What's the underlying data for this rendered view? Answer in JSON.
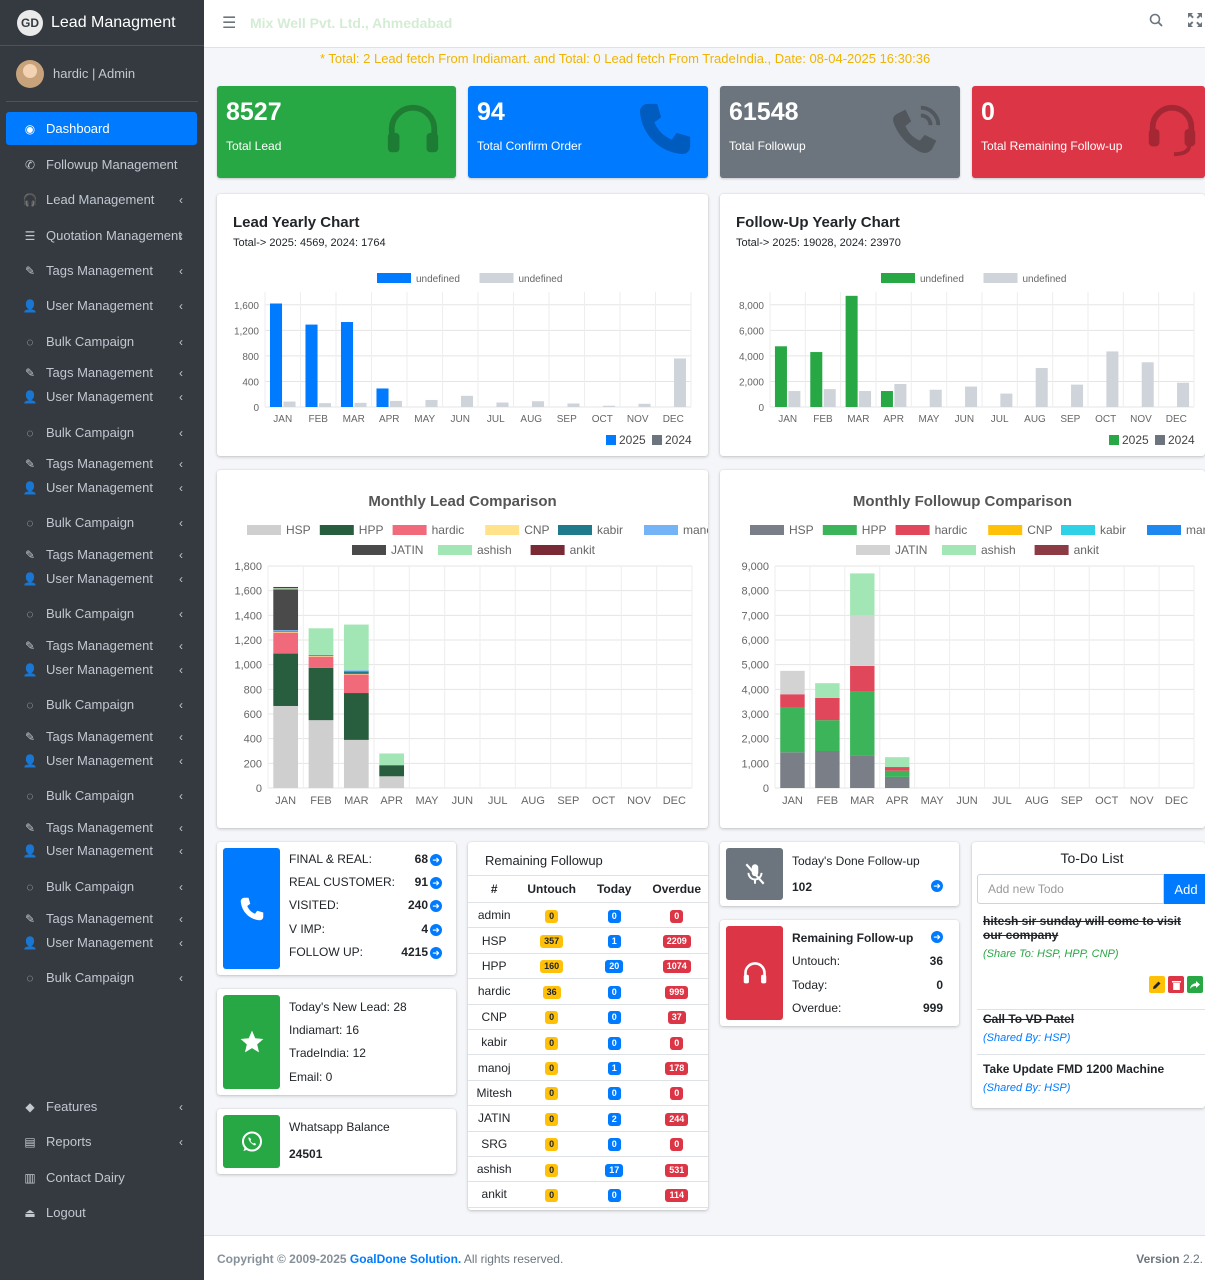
{
  "brand": {
    "logo": "GD",
    "name": "Lead Managment"
  },
  "user": {
    "name": "hardic | Admin"
  },
  "sidebar": {
    "items": [
      {
        "label": "Dashboard",
        "icon": "dashboard-icon",
        "active": true,
        "chevron": false
      },
      {
        "label": "Followup Management",
        "icon": "phone-icon",
        "chevron": false
      },
      {
        "label": "Lead Management",
        "icon": "headphones-icon",
        "chevron": true
      },
      {
        "label": "Quotation Management",
        "icon": "list-icon",
        "chevron": true
      },
      {
        "label": "Tags Management",
        "icon": "edit-icon",
        "chevron": true
      },
      {
        "label": "User Management",
        "icon": "user-icon",
        "chevron": true
      },
      {
        "label": "Bulk Campaign",
        "icon": "whatsapp-icon",
        "chevron": true
      },
      {
        "label": "Tags Management",
        "icon": "edit-icon",
        "chevron": true
      },
      {
        "label": "User Management",
        "icon": "user-icon",
        "chevron": true
      },
      {
        "label": "Bulk Campaign",
        "icon": "whatsapp-icon",
        "chevron": true
      },
      {
        "label": "Tags Management",
        "icon": "edit-icon",
        "chevron": true
      },
      {
        "label": "User Management",
        "icon": "user-icon",
        "chevron": true
      },
      {
        "label": "Bulk Campaign",
        "icon": "whatsapp-icon",
        "chevron": true
      },
      {
        "label": "Tags Management",
        "icon": "edit-icon",
        "chevron": true
      },
      {
        "label": "User Management",
        "icon": "user-icon",
        "chevron": true
      },
      {
        "label": "Bulk Campaign",
        "icon": "whatsapp-icon",
        "chevron": true
      },
      {
        "label": "Tags Management",
        "icon": "edit-icon",
        "chevron": true
      },
      {
        "label": "User Management",
        "icon": "user-icon",
        "chevron": true
      },
      {
        "label": "Bulk Campaign",
        "icon": "whatsapp-icon",
        "chevron": true
      },
      {
        "label": "Tags Management",
        "icon": "edit-icon",
        "chevron": true
      },
      {
        "label": "User Management",
        "icon": "user-icon",
        "chevron": true
      },
      {
        "label": "Bulk Campaign",
        "icon": "whatsapp-icon",
        "chevron": true
      },
      {
        "label": "Tags Management",
        "icon": "edit-icon",
        "chevron": true
      },
      {
        "label": "User Management",
        "icon": "user-icon",
        "chevron": true
      },
      {
        "label": "Bulk Campaign",
        "icon": "whatsapp-icon",
        "chevron": true
      },
      {
        "label": "Tags Management",
        "icon": "edit-icon",
        "chevron": true
      },
      {
        "label": "User Management",
        "icon": "user-icon",
        "chevron": true
      },
      {
        "label": "Bulk Campaign",
        "icon": "whatsapp-icon",
        "chevron": true
      },
      {
        "label": "Features",
        "icon": "tags-icon",
        "chevron": true
      },
      {
        "label": "Reports",
        "icon": "file-icon",
        "chevron": true
      },
      {
        "label": "Contact Dairy",
        "icon": "book-icon",
        "chevron": false
      },
      {
        "label": "Logout",
        "icon": "eject-icon",
        "chevron": false
      }
    ]
  },
  "header": {
    "company": "Mix Well Pvt. Ltd., Ahmedabad",
    "search_icon": "search-icon",
    "fullscreen_icon": "fullscreen-icon"
  },
  "marquee": "* Total: 2 Lead fetch From Indiamart. and Total: 0 Lead fetch From TradeIndia., Date: 08-04-2025 16:30:36",
  "stats": [
    {
      "value": "8527",
      "label": "Total Lead",
      "color": "#28a745",
      "icon": "headphones-icon"
    },
    {
      "value": "94",
      "label": "Total Confirm Order",
      "color": "#007bff",
      "icon": "phone-icon"
    },
    {
      "value": "61548",
      "label": "Total Followup",
      "color": "#6c757d",
      "icon": "phone-volume-icon"
    },
    {
      "value": "0",
      "label": "Total Remaining Follow-up",
      "color": "#dc3545",
      "icon": "headset-icon"
    }
  ],
  "lead_yearly": {
    "title": "Lead Yearly Chart",
    "subtitle": "Total-> 2025: 4569, 2024: 1764"
  },
  "followup_yearly": {
    "title": "Follow-Up Yearly Chart",
    "subtitle": "Total-> 2025: 19028, 2024: 23970"
  },
  "chart_data": [
    {
      "type": "bar",
      "categories": [
        "JAN",
        "FEB",
        "MAR",
        "APR",
        "MAY",
        "JUN",
        "JUL",
        "AUG",
        "SEP",
        "OCT",
        "NOV",
        "DEC"
      ],
      "series": [
        {
          "name": "undefined",
          "color": "#007bff",
          "values": [
            1620,
            1290,
            1330,
            290,
            0,
            0,
            0,
            0,
            0,
            0,
            0,
            0
          ]
        },
        {
          "name": "undefined",
          "color": "#ced4da",
          "values": [
            85,
            60,
            65,
            95,
            110,
            175,
            70,
            90,
            55,
            20,
            50,
            760
          ]
        }
      ],
      "bottom_legend": [
        "2025",
        "2024"
      ],
      "ylim": [
        0,
        1800
      ],
      "yticks": [
        0,
        400,
        800,
        1200,
        1600
      ],
      "ytick_labels": [
        "0",
        "400",
        "800",
        "1,200",
        "1,600"
      ]
    },
    {
      "type": "bar",
      "categories": [
        "JAN",
        "FEB",
        "MAR",
        "APR",
        "MAY",
        "JUN",
        "JUL",
        "AUG",
        "SEP",
        "OCT",
        "NOV",
        "DEC"
      ],
      "series": [
        {
          "name": "undefined",
          "color": "#28a745",
          "values": [
            4750,
            4300,
            8700,
            1250,
            0,
            0,
            0,
            0,
            0,
            0,
            0,
            0
          ]
        },
        {
          "name": "undefined",
          "color": "#ced4da",
          "values": [
            1250,
            1400,
            1250,
            1800,
            1350,
            1600,
            1050,
            3050,
            1750,
            4350,
            3500,
            1900
          ]
        }
      ],
      "bottom_legend": [
        "2025",
        "2024"
      ],
      "ylim": [
        0,
        9000
      ],
      "yticks": [
        0,
        2000,
        4000,
        6000,
        8000
      ],
      "ytick_labels": [
        "0",
        "2,000",
        "4,000",
        "6,000",
        "8,000"
      ]
    },
    {
      "type": "bar",
      "stacked": true,
      "title": "Monthly Lead Comparison",
      "categories": [
        "JAN",
        "FEB",
        "MAR",
        "APR",
        "MAY",
        "JUN",
        "JUL",
        "AUG",
        "SEP",
        "OCT",
        "NOV",
        "DEC"
      ],
      "series": [
        {
          "name": "HSP",
          "color": "#cfcfcf",
          "values": [
            665,
            550,
            390,
            95,
            0,
            0,
            0,
            0,
            0,
            0,
            0,
            0
          ]
        },
        {
          "name": "HPP",
          "color": "#285e3d",
          "values": [
            425,
            425,
            380,
            90,
            0,
            0,
            0,
            0,
            0,
            0,
            0,
            0
          ]
        },
        {
          "name": "hardic",
          "color": "#f16a7b",
          "values": [
            170,
            90,
            150,
            0,
            0,
            0,
            0,
            0,
            0,
            0,
            0,
            0
          ]
        },
        {
          "name": "CNP",
          "color": "#ffe28a",
          "values": [
            5,
            5,
            5,
            0,
            0,
            0,
            0,
            0,
            0,
            0,
            0,
            0
          ]
        },
        {
          "name": "kabir",
          "color": "#1f7a8c",
          "values": [
            5,
            5,
            20,
            0,
            0,
            0,
            0,
            0,
            0,
            0,
            0,
            0
          ]
        },
        {
          "name": "manoj",
          "color": "#74b3f5",
          "values": [
            10,
            5,
            10,
            0,
            0,
            0,
            0,
            0,
            0,
            0,
            0,
            0
          ]
        },
        {
          "name": "JATIN",
          "color": "#4a4a4a",
          "values": [
            330,
            0,
            0,
            0,
            0,
            0,
            0,
            0,
            0,
            0,
            0,
            0
          ]
        },
        {
          "name": "ashish",
          "color": "#a3e6b5",
          "values": [
            10,
            215,
            370,
            95,
            0,
            0,
            0,
            0,
            0,
            0,
            0,
            0
          ]
        },
        {
          "name": "ankit",
          "color": "#7a2a35",
          "values": [
            10,
            0,
            0,
            0,
            0,
            0,
            0,
            0,
            0,
            0,
            0,
            0
          ]
        }
      ],
      "ylim": [
        0,
        1800
      ],
      "yticks": [
        0,
        200,
        400,
        600,
        800,
        1000,
        1200,
        1400,
        1600,
        1800
      ],
      "ytick_labels": [
        "0",
        "200",
        "400",
        "600",
        "800",
        "1,000",
        "1,200",
        "1,400",
        "1,600",
        "1,800"
      ]
    },
    {
      "type": "bar",
      "stacked": true,
      "title": "Monthly Followup Comparison",
      "categories": [
        "JAN",
        "FEB",
        "MAR",
        "APR",
        "MAY",
        "JUN",
        "JUL",
        "AUG",
        "SEP",
        "OCT",
        "NOV",
        "DEC"
      ],
      "series": [
        {
          "name": "HSP",
          "color": "#7a7f87",
          "values": [
            1450,
            1500,
            1300,
            450,
            0,
            0,
            0,
            0,
            0,
            0,
            0,
            0
          ]
        },
        {
          "name": "HPP",
          "color": "#3cb55a",
          "values": [
            1800,
            1250,
            2600,
            250,
            0,
            0,
            0,
            0,
            0,
            0,
            0,
            0
          ]
        },
        {
          "name": "hardic",
          "color": "#e0475a",
          "values": [
            550,
            900,
            1050,
            150,
            0,
            0,
            0,
            0,
            0,
            0,
            0,
            0
          ]
        },
        {
          "name": "CNP",
          "color": "#ffc107",
          "values": [
            0,
            0,
            0,
            0,
            0,
            0,
            0,
            0,
            0,
            0,
            0,
            0
          ]
        },
        {
          "name": "kabir",
          "color": "#2ed1e6",
          "values": [
            0,
            0,
            0,
            0,
            0,
            0,
            0,
            0,
            0,
            0,
            0,
            0
          ]
        },
        {
          "name": "manoj",
          "color": "#1e88f0",
          "values": [
            0,
            0,
            0,
            0,
            0,
            0,
            0,
            0,
            0,
            0,
            0,
            0
          ]
        },
        {
          "name": "JATIN",
          "color": "#d3d3d3",
          "values": [
            950,
            0,
            2050,
            0,
            0,
            0,
            0,
            0,
            0,
            0,
            0,
            0
          ]
        },
        {
          "name": "ashish",
          "color": "#a3e6b5",
          "values": [
            0,
            600,
            1700,
            400,
            0,
            0,
            0,
            0,
            0,
            0,
            0,
            0
          ]
        },
        {
          "name": "ankit",
          "color": "#8c3a44",
          "values": [
            0,
            0,
            0,
            0,
            0,
            0,
            0,
            0,
            0,
            0,
            0,
            0
          ]
        }
      ],
      "ylim": [
        0,
        9000
      ],
      "yticks": [
        0,
        1000,
        2000,
        3000,
        4000,
        5000,
        6000,
        7000,
        8000,
        9000
      ],
      "ytick_labels": [
        "0",
        "1,000",
        "2,000",
        "3,000",
        "4,000",
        "5,000",
        "6,000",
        "7,000",
        "8,000",
        "9,000"
      ]
    }
  ],
  "summary_box": {
    "icon": "phone-icon",
    "rows": [
      {
        "label": "FINAL & REAL:",
        "value": "68"
      },
      {
        "label": "REAL CUSTOMER:",
        "value": "91"
      },
      {
        "label": "VISITED:",
        "value": "240"
      },
      {
        "label": "V IMP:",
        "value": "4"
      },
      {
        "label": "FOLLOW UP:",
        "value": "4215"
      }
    ]
  },
  "new_lead_box": {
    "icon": "star-icon",
    "lines": [
      "Today's New Lead: 28",
      "Indiamart: 16",
      "TradeIndia: 12",
      "Email: 0"
    ]
  },
  "whatsapp_box": {
    "icon": "whatsapp-icon",
    "title": "Whatsapp Balance",
    "value": "24501"
  },
  "remaining_followup": {
    "title": "Remaining Followup",
    "headers": [
      "#",
      "Untouch",
      "Today",
      "Overdue"
    ],
    "rows": [
      {
        "name": "admin",
        "untouch": "0",
        "today": "0",
        "overdue": "0"
      },
      {
        "name": "HSP",
        "untouch": "357",
        "today": "1",
        "overdue": "2209"
      },
      {
        "name": "HPP",
        "untouch": "160",
        "today": "20",
        "overdue": "1074"
      },
      {
        "name": "hardic",
        "untouch": "36",
        "today": "0",
        "overdue": "999"
      },
      {
        "name": "CNP",
        "untouch": "0",
        "today": "0",
        "overdue": "37"
      },
      {
        "name": "kabir",
        "untouch": "0",
        "today": "0",
        "overdue": "0"
      },
      {
        "name": "manoj",
        "untouch": "0",
        "today": "1",
        "overdue": "178"
      },
      {
        "name": "Mitesh",
        "untouch": "0",
        "today": "0",
        "overdue": "0"
      },
      {
        "name": "JATIN",
        "untouch": "0",
        "today": "2",
        "overdue": "244"
      },
      {
        "name": "SRG",
        "untouch": "0",
        "today": "0",
        "overdue": "0"
      },
      {
        "name": "ashish",
        "untouch": "0",
        "today": "17",
        "overdue": "531"
      },
      {
        "name": "ankit",
        "untouch": "0",
        "today": "0",
        "overdue": "114"
      }
    ]
  },
  "done_followup": {
    "icon": "microphone-slash-icon",
    "title": "Today's Done Follow-up",
    "value": "102"
  },
  "remaining_box": {
    "icon": "headphones-icon",
    "title": "Remaining Follow-up",
    "rows": [
      {
        "label": "Untouch:",
        "value": "36"
      },
      {
        "label": "Today:",
        "value": "0"
      },
      {
        "label": "Overdue:",
        "value": "999"
      }
    ]
  },
  "todo": {
    "title": "To-Do List",
    "placeholder": "Add new Todo",
    "add_label": "Add",
    "items": [
      {
        "text": "hitesh sir sunday will come to visit our company",
        "share": "(Share To: HSP, HPP, CNP)",
        "done": true
      },
      {
        "text": "Call To VD Patel",
        "share": "(Shared By: HSP)",
        "done": true
      },
      {
        "text": "Take Update FMD 1200 Machine",
        "share": "(Shared By: HSP)",
        "done": false
      }
    ]
  },
  "footer": {
    "prefix": "Copyright © 2009-2025",
    "company": "GoalDone Solution.",
    "suffix": "All rights reserved.",
    "version_label": "Version",
    "version": "2.2."
  }
}
